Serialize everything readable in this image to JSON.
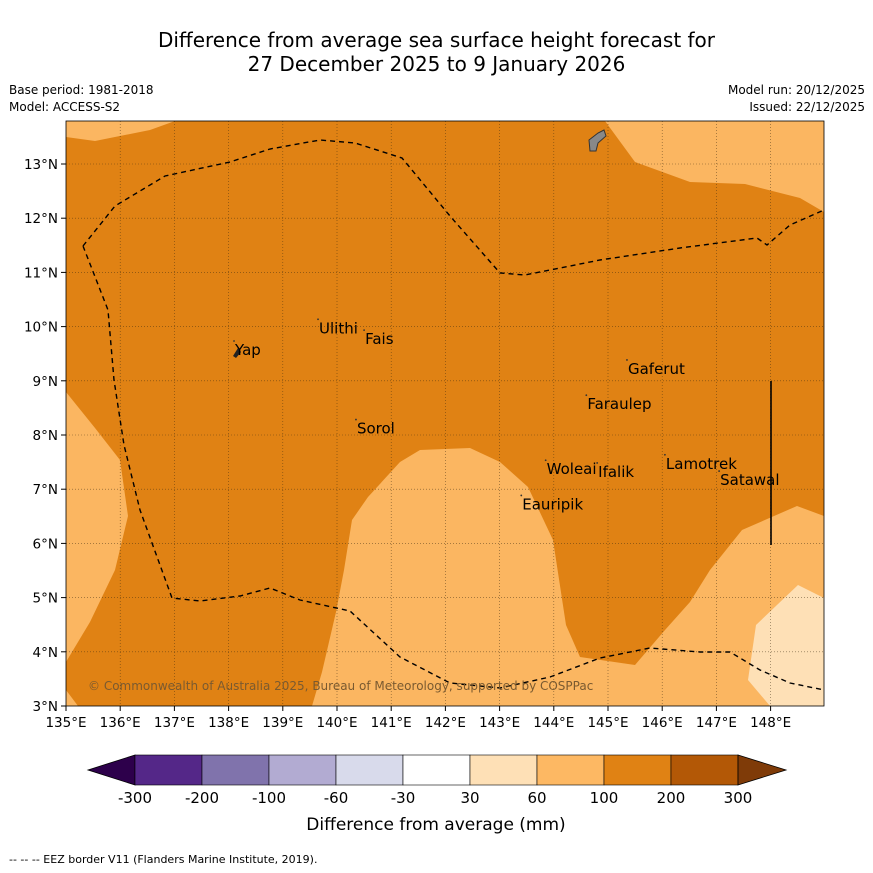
{
  "title": {
    "line1": "Difference from average sea surface height forecast for",
    "line2": "27 December 2025 to 9 January 2026"
  },
  "meta": {
    "base_period": "Base period: 1981-2018",
    "model": "Model: ACCESS-S2",
    "model_run": "Model run: 20/12/2025",
    "issued": "Issued: 22/12/2025"
  },
  "map": {
    "lon_ticks": [
      "135°E",
      "136°E",
      "137°E",
      "138°E",
      "139°E",
      "140°E",
      "141°E",
      "142°E",
      "143°E",
      "144°E",
      "145°E",
      "146°E",
      "147°E",
      "148°E"
    ],
    "lat_ticks": [
      "3°N",
      "4°N",
      "5°N",
      "6°N",
      "7°N",
      "8°N",
      "9°N",
      "10°N",
      "11°N",
      "12°N",
      "13°N"
    ],
    "places": [
      {
        "name": "Yap",
        "lon": 138.1,
        "lat": 9.55
      },
      {
        "name": "Ulithi",
        "lon": 139.65,
        "lat": 9.95
      },
      {
        "name": "Fais",
        "lon": 140.5,
        "lat": 9.75
      },
      {
        "name": "Sorol",
        "lon": 140.35,
        "lat": 8.1
      },
      {
        "name": "Gaferut",
        "lon": 145.35,
        "lat": 9.2
      },
      {
        "name": "Faraulep",
        "lon": 144.6,
        "lat": 8.55
      },
      {
        "name": "Woleai",
        "lon": 143.85,
        "lat": 7.35
      },
      {
        "name": "Ifalik",
        "lon": 144.8,
        "lat": 7.3
      },
      {
        "name": "Lamotrek",
        "lon": 146.05,
        "lat": 7.45
      },
      {
        "name": "Satawal",
        "lon": 147.05,
        "lat": 7.15
      },
      {
        "name": "Eauripik",
        "lon": 143.4,
        "lat": 6.7
      }
    ],
    "copyright": "© Commonwealth of Australia 2025, Bureau of Meteorology, supported by COSPPac",
    "colors": {
      "mm_60_100": "#fbb661",
      "mm_100_200": "#e08214",
      "mm_30_60": "#fee0b6",
      "eez_line": "#000000"
    }
  },
  "colorbar": {
    "title": "Difference from average (mm)",
    "ticks": [
      "-300",
      "-200",
      "-100",
      "-60",
      "-30",
      "30",
      "60",
      "100",
      "200",
      "300"
    ],
    "colors": [
      "#2d004b",
      "#542788",
      "#8073ac",
      "#b2abd2",
      "#d8daeb",
      "#ffffff",
      "#fee0b6",
      "#fdb863",
      "#e08214",
      "#b35806",
      "#7f3b08"
    ]
  },
  "footer": "-- -- -- EEZ border V11 (Flanders Marine Institute, 2019)."
}
